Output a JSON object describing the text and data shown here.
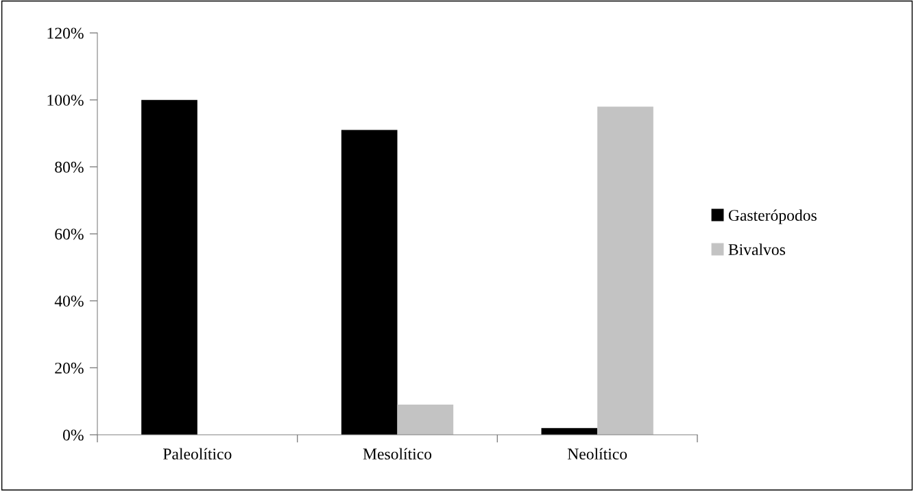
{
  "chart_data": {
    "type": "bar",
    "categories": [
      "Paleolítico",
      "Mesolítico",
      "Neolítico"
    ],
    "series": [
      {
        "name": "Gasterópodos",
        "color": "#000000",
        "values": [
          100,
          91,
          2
        ]
      },
      {
        "name": "Bivalvos",
        "color": "#c3c3c3",
        "values": [
          0,
          9,
          98
        ]
      }
    ],
    "ylim": [
      0,
      120
    ],
    "yticks": [
      {
        "value": 0,
        "label": "0%"
      },
      {
        "value": 20,
        "label": "20%"
      },
      {
        "value": 40,
        "label": "40%"
      },
      {
        "value": 60,
        "label": "60%"
      },
      {
        "value": 80,
        "label": "80%"
      },
      {
        "value": 100,
        "label": "100%"
      },
      {
        "value": 120,
        "label": "120%"
      }
    ],
    "grid": false,
    "legend": "right"
  }
}
